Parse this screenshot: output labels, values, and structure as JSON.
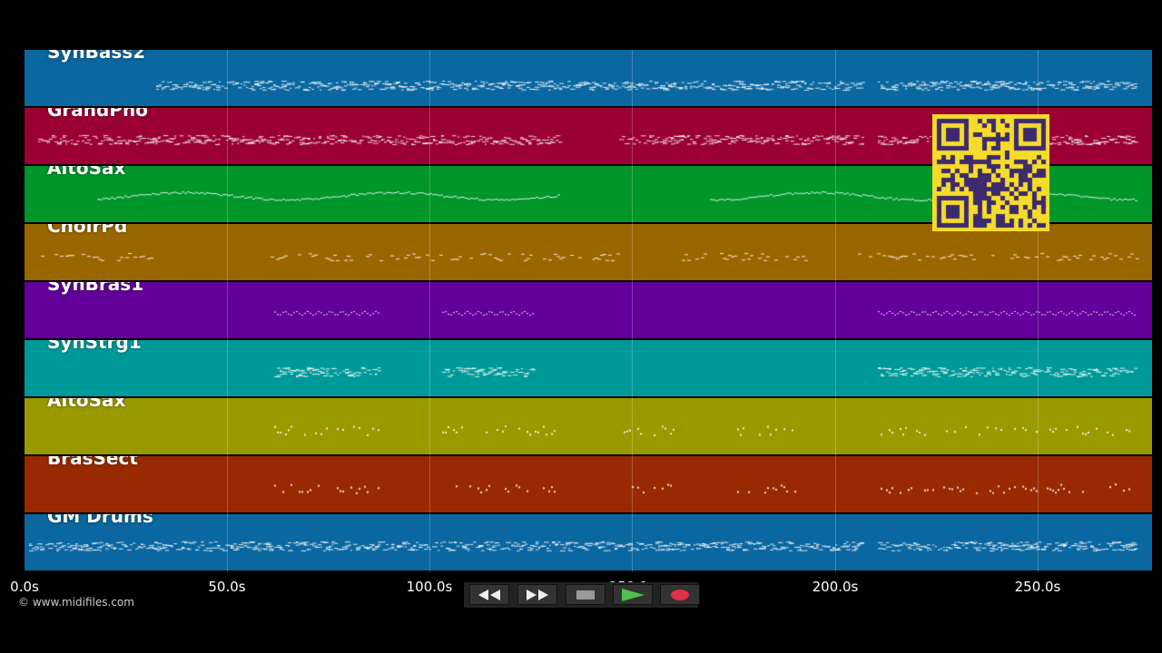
{
  "tracks": [
    {
      "name": "SynBass2",
      "color": "#0a67a0"
    },
    {
      "name": "GrandPno",
      "color": "#9a0033"
    },
    {
      "name": "AltoSax",
      "color": "#00962a"
    },
    {
      "name": "ChoirPd",
      "color": "#9a6600"
    },
    {
      "name": "SynBras1",
      "color": "#620099"
    },
    {
      "name": "SynStrg1",
      "color": "#009999"
    },
    {
      "name": "AltoSax",
      "color": "#999900"
    },
    {
      "name": "BrasSect",
      "color": "#992900"
    },
    {
      "name": "GM Drums",
      "color": "#0a67a0"
    }
  ],
  "timeline": {
    "ticks": [
      "0.0s",
      "50.0s",
      "100.0s",
      "150.0s",
      "200.0s",
      "250.0s"
    ]
  },
  "copyright": "© www.midifiles.com",
  "transport": {
    "buttons": [
      "rewind",
      "fast-forward",
      "stop",
      "play",
      "record"
    ]
  },
  "colors": {
    "qr_background": "#f5dc2a",
    "qr_foreground": "#3d2a6e",
    "play": "#4fc04a",
    "record": "#e0304a"
  }
}
